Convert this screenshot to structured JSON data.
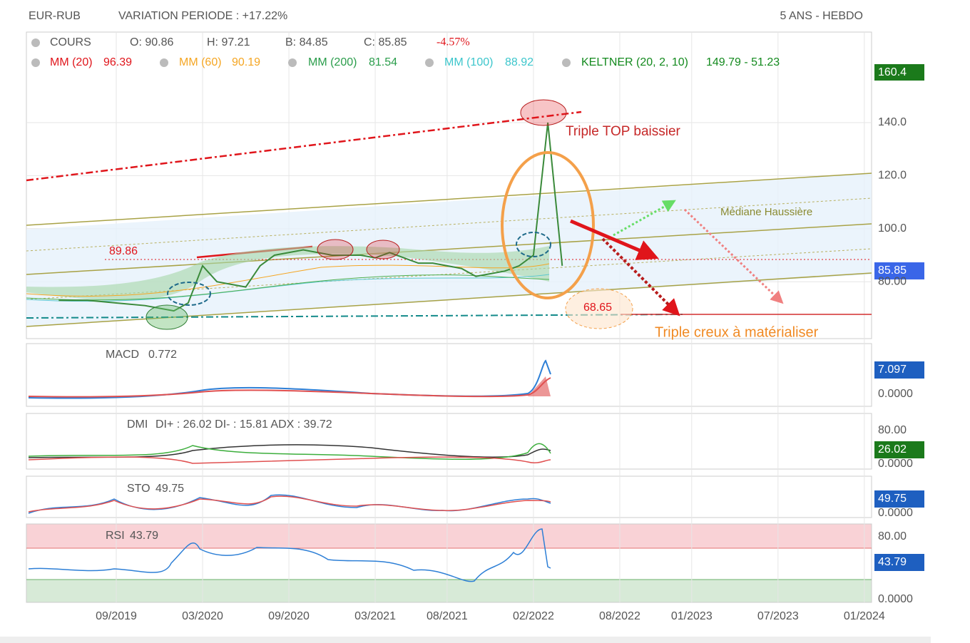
{
  "header": {
    "symbol": "EUR-RUB",
    "variation": "VARIATION PERIODE : +17.22%",
    "period": "5 ANS - HEBDO"
  },
  "legend": {
    "cours": "COURS",
    "open": "O: 90.86",
    "high": "H: 97.21",
    "low": "B: 84.85",
    "close": "C: 85.85",
    "change": "-4.57%",
    "mm20": {
      "name": "MM (20)",
      "value": "96.39"
    },
    "mm60": {
      "name": "MM (60)",
      "value": "90.19"
    },
    "mm200": {
      "name": "MM (200)",
      "value": "81.54"
    },
    "mm100": {
      "name": "MM (100)",
      "value": "88.92"
    },
    "keltner": {
      "name": "KELTNER (20, 2, 10)",
      "value": "149.79 - 51.23"
    }
  },
  "price": {
    "x": [
      "05/2019",
      "07/2019",
      "09/2019",
      "11/2019",
      "01/2020",
      "02/2020",
      "03/2020",
      "04/2020",
      "06/2020",
      "07/2020",
      "08/2020",
      "09/2020",
      "10/2020",
      "12/2020",
      "02/2021",
      "03/2021",
      "04/2021",
      "06/2021",
      "07/2021",
      "08/2021",
      "09/2021",
      "10/2021",
      "11/2021",
      "12/2021",
      "01/2022",
      "02/2022",
      "03/2022",
      "04/2022"
    ],
    "values": [
      73,
      73,
      72,
      71,
      69,
      72,
      86,
      80,
      78,
      86,
      90,
      91,
      92,
      90,
      90,
      89,
      91,
      87,
      87,
      86,
      85,
      82,
      83,
      84,
      86,
      90,
      140,
      86
    ],
    "yticks": [
      {
        "value": 140,
        "label": "140.0"
      },
      {
        "value": 120,
        "label": "120.0"
      },
      {
        "value": 100,
        "label": "100.0"
      },
      {
        "value": 80,
        "label": "80.00"
      }
    ],
    "high_label": "160.4",
    "last_label": "85.85",
    "xticks": [
      "09/2019",
      "03/2020",
      "09/2020",
      "03/2021",
      "08/2021",
      "02/2022",
      "08/2022",
      "01/2023",
      "07/2023",
      "01/2024"
    ]
  },
  "annotations": {
    "top": "Triple TOP baissier",
    "mediane": "Médiane Haussière",
    "level_high": "89.86",
    "level_low": "68.65",
    "creux": "Triple creux à matérialiser"
  },
  "macd": {
    "name": "MACD",
    "value": "0.772",
    "last": "7.097",
    "zero": "0.0000"
  },
  "dmi": {
    "name": "DMI",
    "value": "DI+ : 26.02 DI- : 15.81 ADX : 39.72",
    "top": "80.00",
    "last": "26.02",
    "zero": "0.0000"
  },
  "sto": {
    "name": "STO",
    "value": "49.75",
    "last": "49.75",
    "zero": "0.0000"
  },
  "rsi": {
    "name": "RSI",
    "value": "43.79",
    "top": "80.00",
    "last": "43.79",
    "zero": "0.0000"
  }
}
